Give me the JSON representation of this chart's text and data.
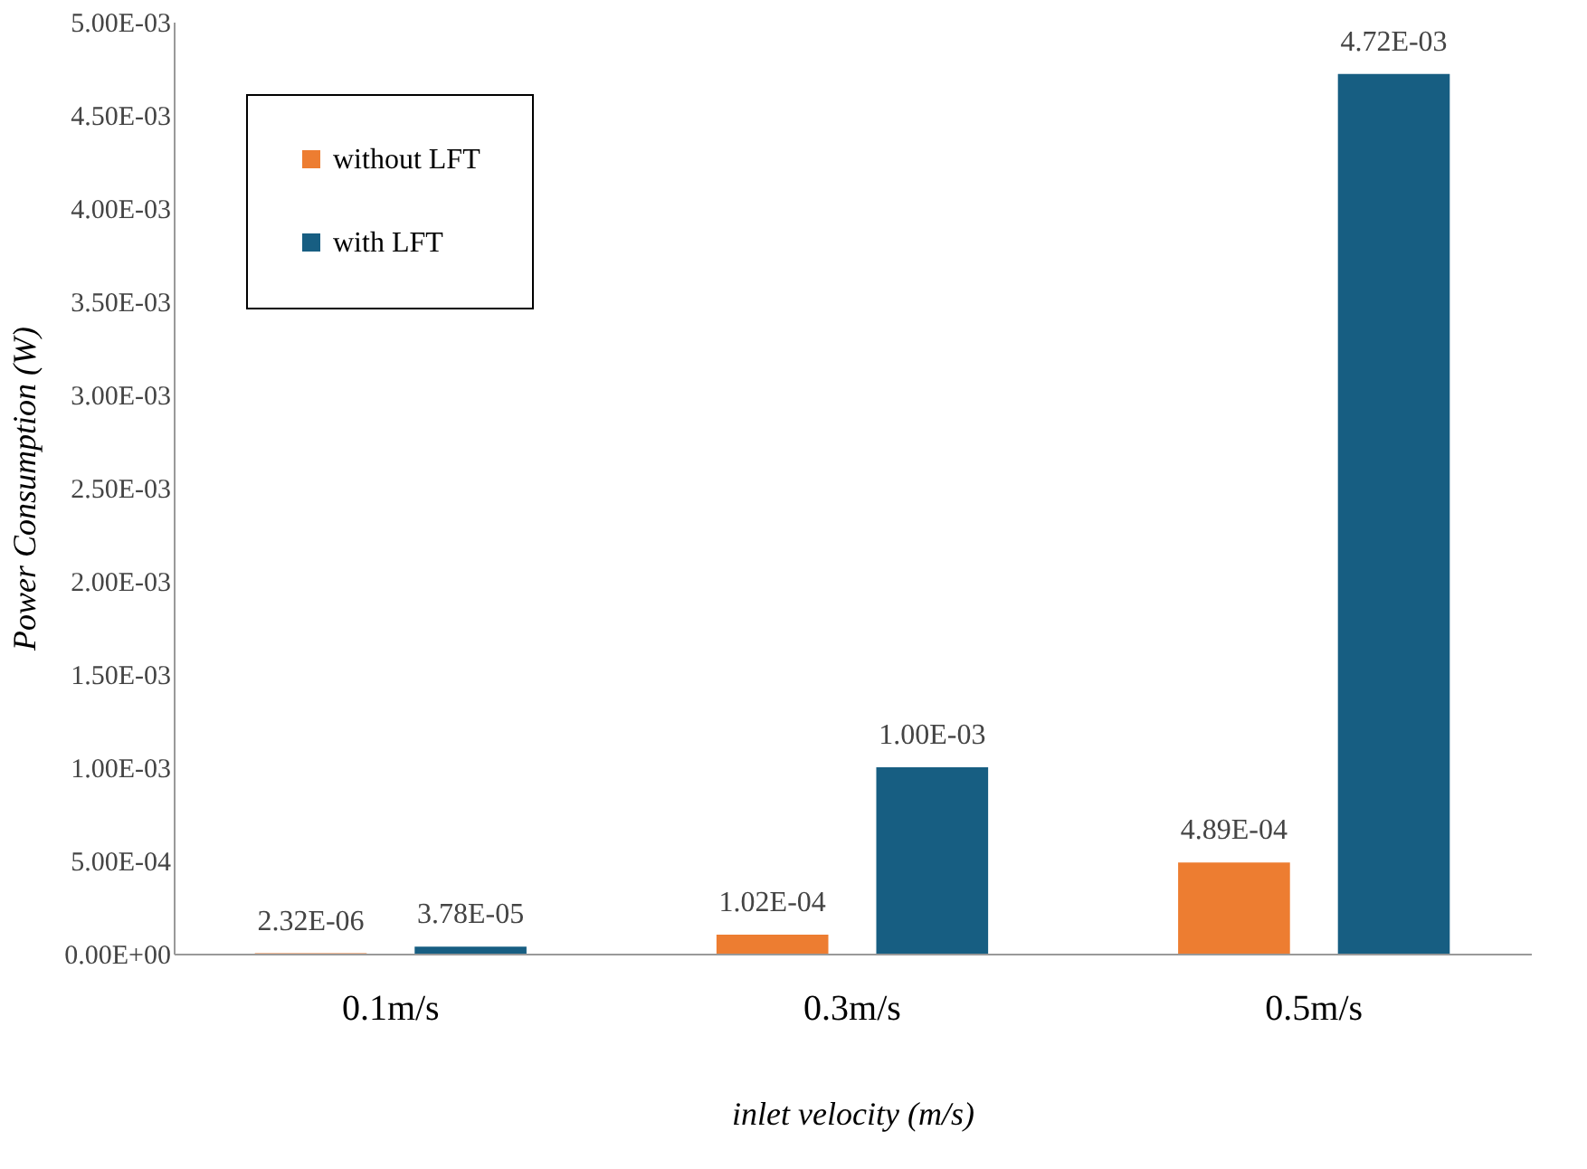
{
  "chart_data": {
    "type": "bar",
    "xlabel": "inlet velocity (m/s)",
    "ylabel": "Power Consumption (W)",
    "categories": [
      "0.1m/s",
      "0.3m/s",
      "0.5m/s"
    ],
    "series": [
      {
        "name": "without LFT",
        "color": "#ed7d31",
        "values": [
          2.32e-06,
          0.000102,
          0.000489
        ],
        "value_labels": [
          "2.32E-06",
          "1.02E-04",
          "4.89E-04"
        ]
      },
      {
        "name": "with LFT",
        "color": "#175e82",
        "values": [
          3.78e-05,
          0.001,
          0.00472
        ],
        "value_labels": [
          "3.78E-05",
          "1.00E-03",
          "4.72E-03"
        ]
      }
    ],
    "ylim": [
      0,
      0.005
    ],
    "yticks": [
      {
        "value": 0,
        "label": "0.00E+00"
      },
      {
        "value": 0.0005,
        "label": "5.00E-04"
      },
      {
        "value": 0.001,
        "label": "1.00E-03"
      },
      {
        "value": 0.0015,
        "label": "1.50E-03"
      },
      {
        "value": 0.002,
        "label": "2.00E-03"
      },
      {
        "value": 0.0025,
        "label": "2.50E-03"
      },
      {
        "value": 0.003,
        "label": "3.00E-03"
      },
      {
        "value": 0.0035,
        "label": "3.50E-03"
      },
      {
        "value": 0.004,
        "label": "4.00E-03"
      },
      {
        "value": 0.0045,
        "label": "4.50E-03"
      },
      {
        "value": 0.005,
        "label": "5.00E-03"
      }
    ],
    "grid": false,
    "legend": "top left"
  }
}
